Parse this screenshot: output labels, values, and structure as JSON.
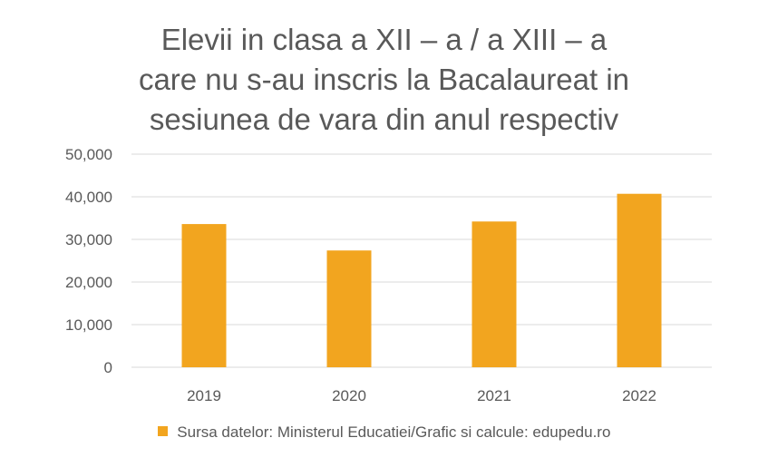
{
  "chart_data": {
    "type": "bar",
    "title_lines": [
      "Elevii in clasa a XII – a / a XIII – a",
      "care nu s-au inscris la Bacalaureat in",
      "sesiunea de vara din anul respectiv"
    ],
    "categories": [
      "2019",
      "2020",
      "2021",
      "2022"
    ],
    "series": [
      {
        "name": "Sursa datelor: Ministerul Educatiei/Grafic si calcule: edupedu.ro",
        "values": [
          33600,
          27400,
          34200,
          40700
        ]
      }
    ],
    "y_ticks": [
      "0",
      "10,000",
      "20,000",
      "30,000",
      "40,000",
      "50,000"
    ],
    "ylim": [
      0,
      50000
    ],
    "grid": true,
    "legend_position": "bottom",
    "colors": {
      "bar": "#F2A51F",
      "grid": "#D9D9D9",
      "text": "#595959"
    }
  }
}
